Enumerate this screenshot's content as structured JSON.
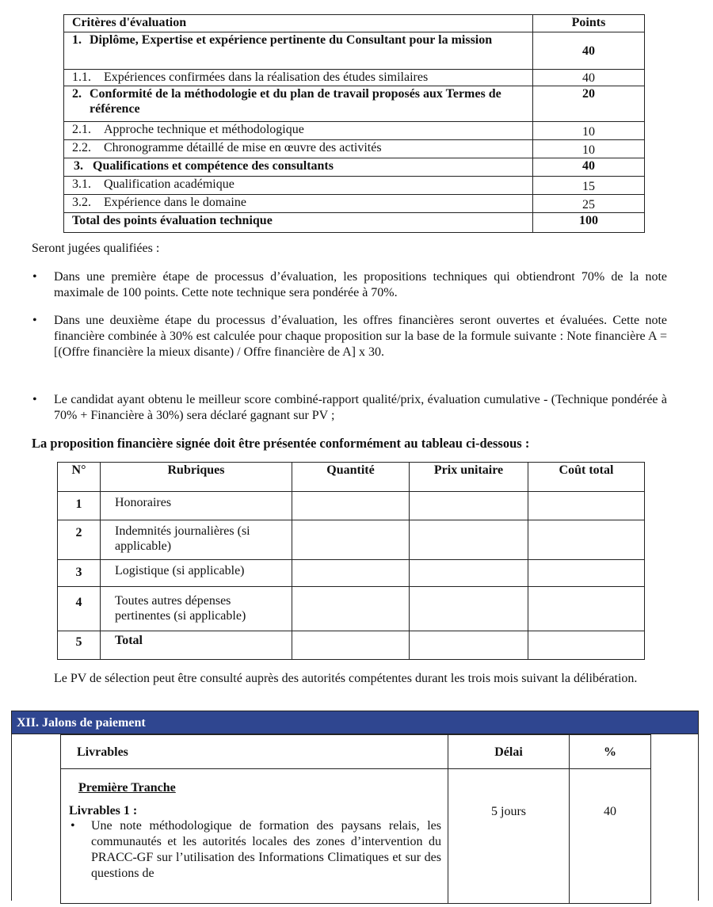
{
  "criteria_table": {
    "header": [
      "Critères d'évaluation",
      "Points"
    ],
    "rows": [
      {
        "num": "1.",
        "label": "Diplôme, Expertise et expérience pertinente du Consultant pour la mission",
        "points": 40
      },
      {
        "num": "1.1.",
        "label": "Expériences confirmées dans la réalisation des études similaires",
        "points": 40
      },
      {
        "num": "2.",
        "label": "Conformité de la méthodologie et du plan de travail proposés aux Termes de référence",
        "points": 20
      },
      {
        "num": "2.1.",
        "label": "Approche technique et méthodologique",
        "points": 10
      },
      {
        "num": "2.2.",
        "label": "Chronogramme détaillé de mise en œuvre des activités",
        "points": 10
      },
      {
        "num": "3.",
        "label": "Qualifications et compétence des consultants",
        "points": 40
      },
      {
        "num": "3.1.",
        "label": "Qualification académique",
        "points": 15
      },
      {
        "num": "3.2.",
        "label": "Expérience dans le domaine",
        "points": 25
      },
      {
        "label": "Total des points évaluation technique",
        "points": 100
      }
    ]
  },
  "qualified_intro": "Seront jugées qualifiées :",
  "bullets": [
    "Dans une première étape de processus d’évaluation, les propositions techniques qui obtiendront 70% de la note maximale de 100 points. Cette note technique sera pondérée à 70%.",
    "Dans une deuxième étape du processus d’évaluation, les offres financières seront ouvertes et évaluées. Cette note financière combinée à 30% est calculée pour chaque proposition sur la base de la formule suivante : Note financière A = [(Offre financière la mieux disante) / Offre financière de A] x 30.",
    "Le candidat ayant obtenu le meilleur score combiné-rapport qualité/prix, évaluation cumulative - (Technique pondérée à 70% + Financière à 30%) sera déclaré gagnant sur PV ;"
  ],
  "financial_heading": "La proposition financière signée doit être présentée conformément au tableau ci-dessous :",
  "financial_table": {
    "header": [
      "N°",
      "Rubriques",
      "Quantité",
      "Prix unitaire",
      "Coût total"
    ],
    "rows": [
      [
        "1",
        "Honoraires"
      ],
      [
        "2",
        "Indemnités journalières (si applicable)"
      ],
      [
        "3",
        "Logistique (si applicable)"
      ],
      [
        "4",
        "Toutes autres dépenses pertinentes (si applicable)"
      ],
      [
        "5",
        "Total"
      ]
    ]
  },
  "pv_note": "Le PV de sélection peut être consulté auprès des autorités compétentes durant les trois mois suivant la délibération.",
  "payment_section": {
    "title": "XII. Jalons de paiement",
    "header": [
      "Livrables",
      "Délai",
      "%"
    ],
    "tranche": "Première Tranche",
    "deliverable": "Livrables 1 :",
    "bullet": "Une note méthodologique de formation des paysans relais, les communautés et les autorités locales des zones d’intervention du PRACC-GF sur l’utilisation des Informations Climatiques et sur des questions de",
    "delay": "5 jours",
    "percent": "40"
  }
}
